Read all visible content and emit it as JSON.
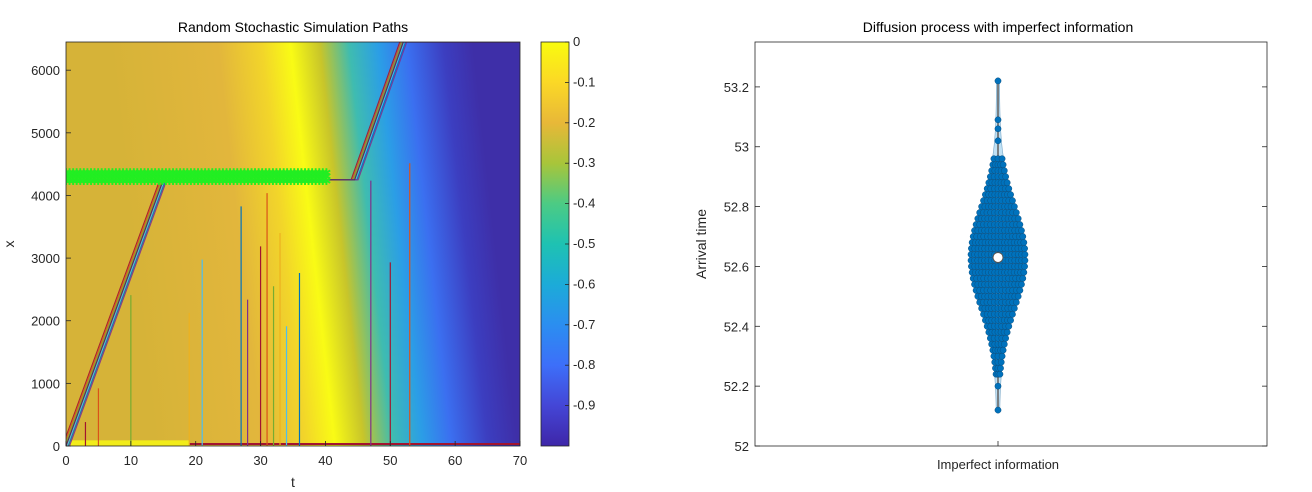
{
  "chart_data": [
    {
      "type": "heatmap",
      "title": "Random Stochastic Simulation Paths",
      "xlabel": "t",
      "ylabel": "x",
      "xlim": [
        0,
        70
      ],
      "ylim": [
        0,
        6450
      ],
      "xticks": [
        "0",
        "10",
        "20",
        "30",
        "40",
        "50",
        "60",
        "70"
      ],
      "yticks": [
        "0",
        "1000",
        "2000",
        "3000",
        "4000",
        "5000",
        "6000"
      ],
      "colorbar": {
        "ticks": [
          "0",
          "-0.1",
          "-0.2",
          "-0.3",
          "-0.4",
          "-0.5",
          "-0.6",
          "-0.7",
          "-0.8",
          "-0.9"
        ],
        "range": [
          -1,
          0
        ],
        "colormap": "parula"
      },
      "paths": {
        "break_points": [
          [
            0,
            0
          ],
          [
            15,
            4250
          ],
          [
            44.5,
            4250
          ],
          [
            52,
            6450
          ],
          [
            70,
            6450
          ]
        ],
        "green_marker_band": {
          "t_range": [
            0,
            40.5
          ],
          "x_range": [
            4180,
            4350
          ],
          "color": "#22ee22"
        },
        "exit_times": [
          3,
          5,
          10,
          19,
          21,
          27,
          28,
          30,
          31,
          32,
          33,
          34,
          36,
          47,
          50,
          53
        ],
        "colors": [
          "#a2142f",
          "#d95319",
          "#77ac30",
          "#edb120",
          "#4dbeee",
          "#0072bd",
          "#7e2f8e"
        ]
      }
    },
    {
      "type": "scatter",
      "title": "Diffusion process with imperfect information",
      "xlabel": "Imperfect information",
      "ylabel": "Arrival time",
      "ylim": [
        52,
        53.35
      ],
      "yticks": [
        "52",
        "52.2",
        "52.4",
        "52.6",
        "52.8",
        "53",
        "53.2"
      ],
      "median": 52.63,
      "whisker": [
        52.12,
        53.22
      ],
      "point_color": "#0072bd",
      "fill_color": "#bfe1f5"
    }
  ]
}
